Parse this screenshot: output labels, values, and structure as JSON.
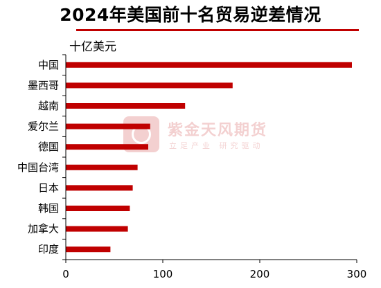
{
  "title": "2024年美国前十名贸易逆差情况",
  "unit_label": "十亿美元",
  "watermark": {
    "name": "紫金天风期货",
    "tagline": "立足产业 研究驱动"
  },
  "chart_data": {
    "type": "bar",
    "orientation": "horizontal",
    "title": "2024年美国前十名贸易逆差情况",
    "ylabel": "十亿美元",
    "categories": [
      "中国",
      "墨西哥",
      "越南",
      "爱尔兰",
      "德国",
      "中国台湾",
      "日本",
      "韩国",
      "加拿大",
      "印度"
    ],
    "values": [
      295,
      172,
      123,
      87,
      85,
      74,
      69,
      66,
      64,
      46
    ],
    "xlim": [
      0,
      300
    ],
    "xticks": [
      0,
      100,
      200,
      300
    ],
    "bar_color": "#c00000",
    "grid": false
  }
}
